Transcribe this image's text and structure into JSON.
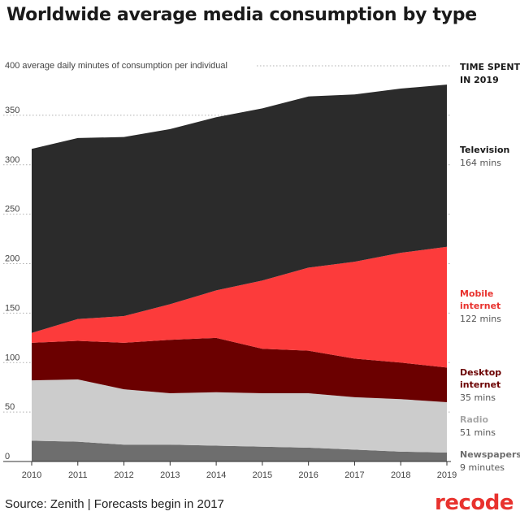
{
  "title": "Worldwide average media consumption by type",
  "footer": {
    "source": "Source: Zenith | Forecasts begin in 2017",
    "brand": "recode"
  },
  "colors": {
    "television": "#2b2b2b",
    "mobile_internet": "#fc3b3b",
    "desktop_internet": "#6b0000",
    "radio": "#cccccc",
    "newspapers": "#6e6e6e",
    "brand": "#e8322e",
    "gridline": "#b0b0b0"
  },
  "chart_data": {
    "type": "area",
    "stacked": true,
    "title": "Worldwide average media consumption by type",
    "ylabel": "average daily minutes of consumption per individual",
    "top_tick_label": "400 average daily minutes of consumption per individual",
    "ylim": [
      0,
      400
    ],
    "yticks": [
      0,
      50,
      100,
      150,
      200,
      250,
      300,
      350
    ],
    "x": [
      2010,
      2011,
      2012,
      2013,
      2014,
      2015,
      2016,
      2017,
      2018,
      2019
    ],
    "x_labels": [
      "2010",
      "2011",
      "2012",
      "2013",
      "2014",
      "2015",
      "2016",
      "2017",
      "2018",
      "2019"
    ],
    "legend_title": [
      "TIME SPENT",
      "IN 2019"
    ],
    "series": [
      {
        "name": "Newspapers",
        "key": "newspapers",
        "value_label": "9 minutes",
        "values": [
          21,
          20,
          17,
          17,
          16,
          15,
          14,
          12,
          10,
          9
        ]
      },
      {
        "name": "Radio",
        "key": "radio",
        "value_label": "51 mins",
        "values": [
          61,
          63,
          56,
          52,
          54,
          54,
          55,
          53,
          53,
          51
        ]
      },
      {
        "name": "Desktop internet",
        "key": "desktop_internet",
        "value_label": "35 mins",
        "values": [
          38,
          39,
          47,
          54,
          55,
          45,
          43,
          39,
          37,
          35
        ]
      },
      {
        "name": "Mobile internet",
        "key": "mobile_internet",
        "value_label": "122 mins",
        "values": [
          10,
          22,
          27,
          36,
          48,
          69,
          84,
          98,
          111,
          122
        ]
      },
      {
        "name": "Television",
        "key": "television",
        "value_label": "164 mins",
        "values": [
          186,
          183,
          181,
          177,
          175,
          174,
          173,
          169,
          166,
          164
        ]
      }
    ]
  }
}
